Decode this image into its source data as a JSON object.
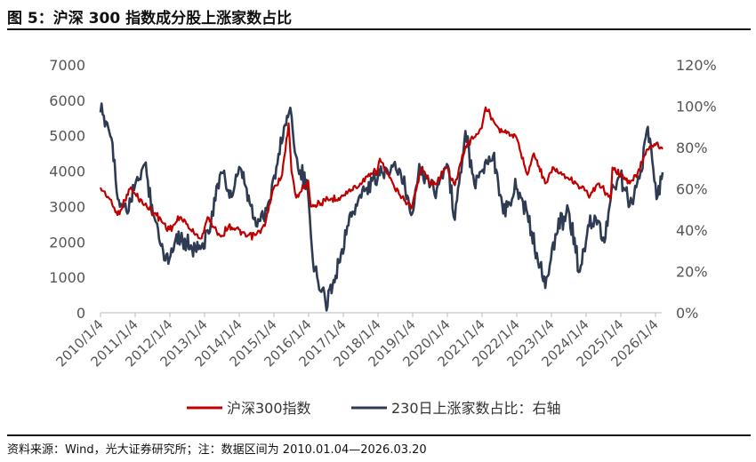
{
  "figure": {
    "title": "图 5：沪深 300 指数成分股上涨家数占比",
    "source": "资料来源：Wind，光大证券研究所；注：数据区间为 2010.01.04—2026.03.20"
  },
  "chart_data": {
    "type": "line",
    "x_ticks": [
      "2010/1/4",
      "2011/1/4",
      "2012/1/4",
      "2013/1/4",
      "2014/1/4",
      "2015/1/4",
      "2016/1/4",
      "2017/1/4",
      "2018/1/4",
      "2019/1/4",
      "2020/1/4",
      "2021/1/4",
      "2022/1/4",
      "2023/1/4",
      "2024/1/4",
      "2025/1/4",
      "2026/1/4"
    ],
    "y_left": {
      "ticks": [
        "0",
        "1000",
        "2000",
        "3000",
        "4000",
        "5000",
        "6000",
        "7000"
      ],
      "ylim": [
        0,
        7000
      ]
    },
    "y_right": {
      "ticks": [
        "0%",
        "20%",
        "40%",
        "60%",
        "80%",
        "100%",
        "120%"
      ],
      "ylim": [
        0,
        120
      ]
    },
    "grid": false,
    "legend_position": "bottom",
    "series": [
      {
        "name": "沪深300指数",
        "axis": "left",
        "color": "#c00000",
        "x": [
          "2010/1/4",
          "2010/4/15",
          "2010/7/1",
          "2010/11/10",
          "2011/4/15",
          "2011/8/15",
          "2011/12/31",
          "2012/5/1",
          "2012/9/25",
          "2012/12/4",
          "2013/2/5",
          "2013/6/25",
          "2013/9/15",
          "2013/12/31",
          "2014/3/15",
          "2014/6/30",
          "2014/9/30",
          "2014/12/31",
          "2015/3/31",
          "2015/6/8",
          "2015/7/8",
          "2015/8/26",
          "2015/12/31",
          "2016/1/28",
          "2016/6/30",
          "2016/12/31",
          "2017/6/30",
          "2017/12/31",
          "2018/1/24",
          "2018/6/30",
          "2018/10/18",
          "2018/12/31",
          "2019/4/8",
          "2019/8/6",
          "2019/12/31",
          "2020/3/23",
          "2020/7/13",
          "2020/12/31",
          "2021/2/10",
          "2021/6/30",
          "2021/12/31",
          "2022/4/26",
          "2022/7/4",
          "2022/10/31",
          "2023/1/28",
          "2023/6/30",
          "2023/12/31",
          "2024/2/5",
          "2024/5/20",
          "2024/9/18",
          "2024/10/8",
          "2024/12/31",
          "2025/4/8",
          "2025/6/30",
          "2025/10/1",
          "2026/1/15",
          "2026/3/20"
        ],
        "values": [
          3535,
          3200,
          2760,
          3500,
          3050,
          2750,
          2350,
          2700,
          2200,
          2100,
          2700,
          2150,
          2450,
          2350,
          2150,
          2200,
          2450,
          3500,
          3900,
          5350,
          4000,
          3250,
          3730,
          3000,
          3150,
          3300,
          3650,
          4030,
          4350,
          3500,
          3150,
          3010,
          4100,
          3600,
          4100,
          3600,
          4700,
          5210,
          5800,
          5200,
          4950,
          3900,
          4500,
          3650,
          4100,
          3800,
          3450,
          3250,
          3650,
          3200,
          4100,
          3900,
          3650,
          3950,
          4600,
          4800,
          4620
        ]
      },
      {
        "name": "230日上涨家数占比：右轴",
        "axis": "right",
        "color": "#2e3b52",
        "x": [
          "2010/1/4",
          "2010/3/15",
          "2010/5/10",
          "2010/7/5",
          "2010/10/15",
          "2011/1/4",
          "2011/4/15",
          "2011/8/1",
          "2011/10/25",
          "2011/12/31",
          "2012/3/15",
          "2012/6/30",
          "2012/12/4",
          "2013/2/5",
          "2013/6/25",
          "2013/10/15",
          "2014/1/15",
          "2014/6/30",
          "2014/10/30",
          "2015/2/10",
          "2015/4/20",
          "2015/6/12",
          "2015/7/10",
          "2015/9/15",
          "2015/12/25",
          "2016/3/1",
          "2016/6/30",
          "2016/10/15",
          "2017/2/15",
          "2017/6/30",
          "2017/12/31",
          "2018/3/31",
          "2018/7/1",
          "2018/10/18",
          "2018/12/31",
          "2019/3/15",
          "2019/5/30",
          "2019/9/15",
          "2019/12/31",
          "2020/3/23",
          "2020/7/13",
          "2020/10/15",
          "2021/2/15",
          "2021/4/30",
          "2021/8/15",
          "2021/12/31",
          "2022/4/26",
          "2022/8/15",
          "2022/11/1",
          "2023/2/15",
          "2023/7/1",
          "2023/10/30",
          "2024/2/5",
          "2024/4/15",
          "2024/7/15",
          "2024/10/8",
          "2024/12/31",
          "2025/4/8",
          "2025/7/30",
          "2025/10/15",
          "2026/1/15",
          "2026/3/20"
        ],
        "values": [
          97,
          92,
          82,
          55,
          48,
          62,
          72,
          45,
          30,
          26,
          38,
          33,
          32,
          40,
          68,
          56,
          70,
          42,
          52,
          72,
          90,
          97,
          95,
          70,
          60,
          20,
          5,
          18,
          42,
          57,
          65,
          70,
          73,
          60,
          48,
          72,
          65,
          60,
          72,
          45,
          88,
          62,
          74,
          76,
          48,
          60,
          48,
          25,
          12,
          38,
          50,
          20,
          42,
          46,
          34,
          62,
          66,
          52,
          68,
          90,
          55,
          68
        ]
      }
    ]
  }
}
